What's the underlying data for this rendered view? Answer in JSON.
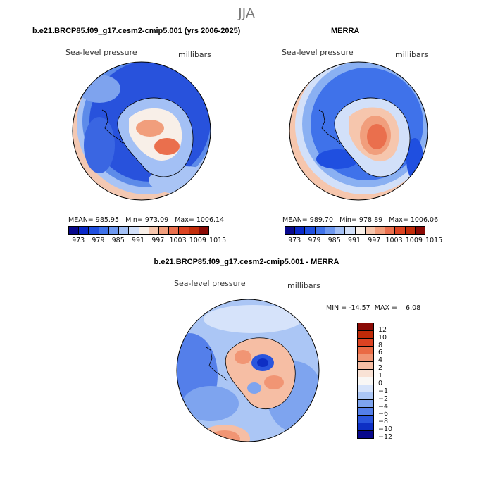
{
  "season": "JJA",
  "panel1": {
    "title": "b.e21.BRCP85.f09_g17.cesm2-cmip5.001 (yrs 2006-2025)",
    "variable": "Sea-level pressure",
    "units": "millibars",
    "stats": "MEAN= 985.95   Min= 973.09   Max= 1006.14",
    "colorbar_ticks": [
      "973",
      "979",
      "985",
      "991",
      "997",
      "1003",
      "1009",
      "1015"
    ]
  },
  "panel2": {
    "title": "MERRA",
    "variable": "Sea-level pressure",
    "units": "millibars",
    "stats": "MEAN= 989.70   Min= 978.89   Max= 1006.06",
    "colorbar_ticks": [
      "973",
      "979",
      "985",
      "991",
      "997",
      "1003",
      "1009",
      "1015"
    ]
  },
  "panel3": {
    "title": "b.e21.BRCP85.f09_g17.cesm2-cmip5.001 - MERRA",
    "variable": "Sea-level pressure",
    "units": "millibars",
    "minmax": "MIN = -14.57  MAX =    6.08",
    "colorbar_ticks": [
      "12",
      "10",
      "8",
      "6",
      "4",
      "2",
      "1",
      "0",
      "−1",
      "−2",
      "−4",
      "−6",
      "−8",
      "−10",
      "−12"
    ]
  },
  "colors": {
    "abs_scale": [
      "#08088c",
      "#0a28c8",
      "#1f4fe0",
      "#3f72ea",
      "#6d98f0",
      "#a3c0f5",
      "#d2e0f9",
      "#f8efe8",
      "#f6c6ad",
      "#f19e7c",
      "#ea6f4d",
      "#dc4322",
      "#c22c0a",
      "#8a0a05"
    ],
    "diff_scale": [
      "#8a0a05",
      "#c02a08",
      "#dc4322",
      "#ea6a44",
      "#f19574",
      "#f6bea4",
      "#f9e2d5",
      "#f9f7f5",
      "#d6e3fa",
      "#abc6f5",
      "#7ea4ef",
      "#547fea",
      "#2a55dd",
      "#0e2fc4",
      "#08088c"
    ],
    "land_outline": "#000000"
  }
}
